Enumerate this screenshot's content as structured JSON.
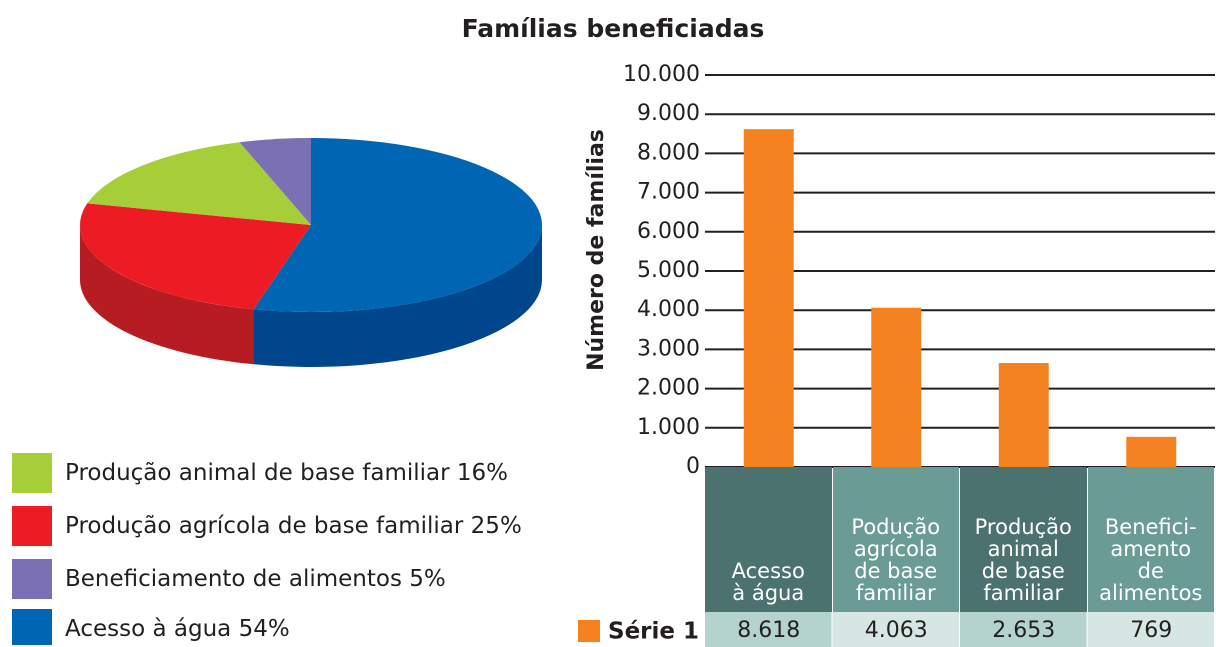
{
  "chart_data": [
    {
      "type": "pie",
      "categories": [
        "Produção animal de base familiar",
        "Produção agrícola de base familiar",
        "Beneficiamento de alimentos",
        "Acesso à água"
      ],
      "values": [
        16,
        25,
        5,
        54
      ],
      "value_labels": [
        "16%",
        "25%",
        "5%",
        "54%"
      ],
      "colors": [
        "#a6ce39",
        "#ed1c24",
        "#7c70b4",
        "#0066b3"
      ],
      "side_colors": [
        "#86a62c",
        "#b71c22",
        "#5f5690",
        "#00468c"
      ]
    },
    {
      "type": "bar",
      "title": "Famílias beneficiadas",
      "y_label": "Número de famílias",
      "categories": [
        "Acesso\nà água",
        "Podução\nagrícola\nde base\nfamiliar",
        "Produção\nanimal\nde base\nfamiliar",
        "Benefici-\namento\nde\nalimentos"
      ],
      "series": [
        {
          "name": "Série 1",
          "color": "#f58220",
          "values": [
            8618,
            4063,
            2653,
            769
          ],
          "value_labels": [
            "8.618",
            "4.063",
            "2.653",
            "769"
          ]
        }
      ],
      "ylim": [
        0,
        10000
      ],
      "yticks": [
        0,
        {
          "value": 1000,
          "label": "1.000"
        },
        {
          "value": 2000,
          "label": "2.000"
        },
        {
          "value": 3000,
          "label": "3.000"
        },
        {
          "value": 4000,
          "label": "4.000"
        },
        {
          "value": 5000,
          "label": "5.000"
        },
        {
          "value": 6000,
          "label": "6.000"
        },
        {
          "value": 7000,
          "label": "7.000"
        },
        {
          "value": 8000,
          "label": "8.000"
        },
        {
          "value": 9000,
          "label": "9.000"
        },
        {
          "value": 10000,
          "label": "10.000"
        }
      ],
      "grid": true
    }
  ]
}
